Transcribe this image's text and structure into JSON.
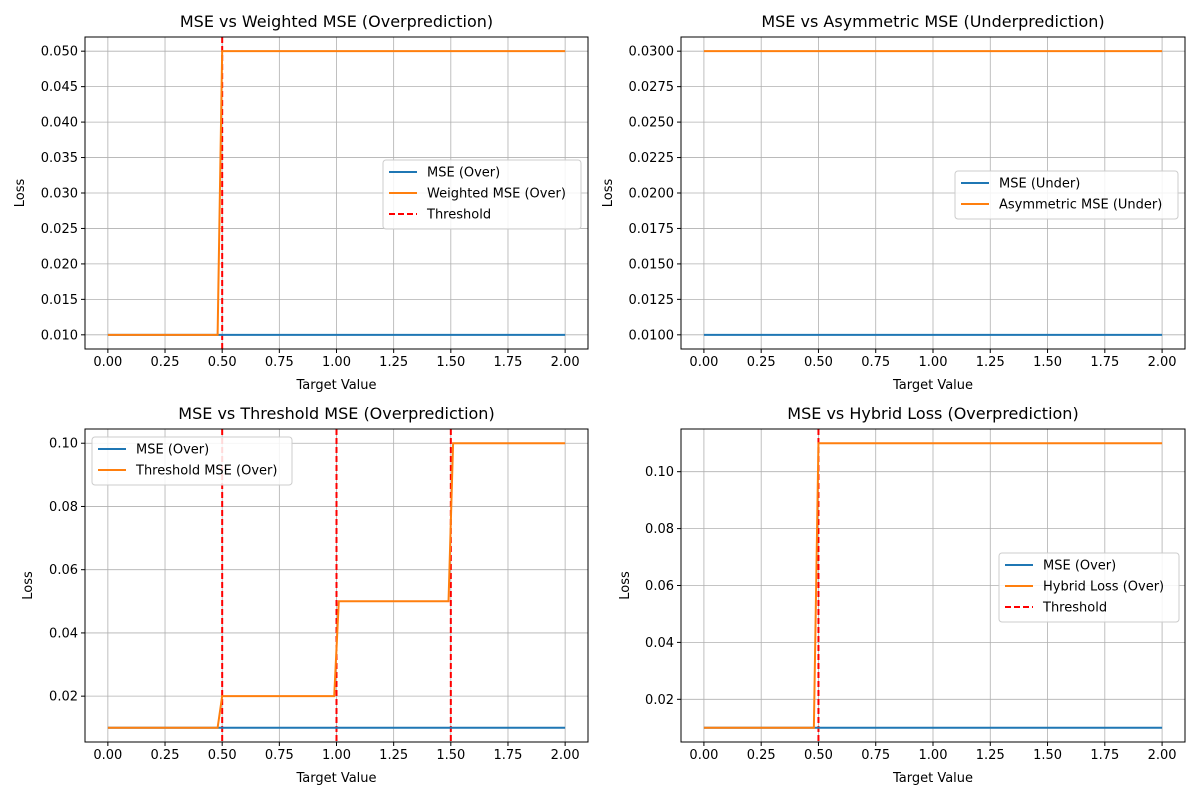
{
  "colors": {
    "mse": "#1f77b4",
    "variant": "#ff7f0e",
    "threshold": "#ff0000",
    "grid": "#b0b0b0",
    "axis": "#000000",
    "legend_border": "#cccccc"
  },
  "chart_data": [
    {
      "type": "line",
      "title": "MSE vs Weighted MSE (Overprediction)",
      "xlabel": "Target Value",
      "ylabel": "Loss",
      "xlim": [
        -0.1,
        2.1
      ],
      "ylim": [
        0.008,
        0.052
      ],
      "xticks": [
        0,
        0.25,
        0.5,
        0.75,
        1.0,
        1.25,
        1.5,
        1.75,
        2.0
      ],
      "xtick_labels": [
        "0.00",
        "0.25",
        "0.50",
        "0.75",
        "1.00",
        "1.25",
        "1.50",
        "1.75",
        "2.00"
      ],
      "yticks": [
        0.01,
        0.015,
        0.02,
        0.025,
        0.03,
        0.035,
        0.04,
        0.045,
        0.05
      ],
      "ytick_labels": [
        "0.010",
        "0.015",
        "0.020",
        "0.025",
        "0.030",
        "0.035",
        "0.040",
        "0.045",
        "0.050"
      ],
      "grid": true,
      "legend_position": "center-right",
      "series": [
        {
          "name": "MSE (Over)",
          "color_key": "mse",
          "style": "solid",
          "x": [
            0,
            2.0
          ],
          "y": [
            0.01,
            0.01
          ]
        },
        {
          "name": "Weighted MSE (Over)",
          "color_key": "variant",
          "style": "solid",
          "x": [
            0,
            0.48,
            0.5,
            2.0
          ],
          "y": [
            0.01,
            0.01,
            0.05,
            0.05
          ]
        }
      ],
      "vlines": [
        {
          "name": "Threshold",
          "x": 0.5,
          "legend": true
        }
      ]
    },
    {
      "type": "line",
      "title": "MSE vs Asymmetric MSE (Underprediction)",
      "xlabel": "Target Value",
      "ylabel": "Loss",
      "xlim": [
        -0.1,
        2.1
      ],
      "ylim": [
        0.009,
        0.031
      ],
      "xticks": [
        0,
        0.25,
        0.5,
        0.75,
        1.0,
        1.25,
        1.5,
        1.75,
        2.0
      ],
      "xtick_labels": [
        "0.00",
        "0.25",
        "0.50",
        "0.75",
        "1.00",
        "1.25",
        "1.50",
        "1.75",
        "2.00"
      ],
      "yticks": [
        0.01,
        0.0125,
        0.015,
        0.0175,
        0.02,
        0.0225,
        0.025,
        0.0275,
        0.03
      ],
      "ytick_labels": [
        "0.0100",
        "0.0125",
        "0.0150",
        "0.0175",
        "0.0200",
        "0.0225",
        "0.0250",
        "0.0275",
        "0.0300"
      ],
      "grid": true,
      "legend_position": "center-right",
      "series": [
        {
          "name": "MSE (Under)",
          "color_key": "mse",
          "style": "solid",
          "x": [
            0,
            2.0
          ],
          "y": [
            0.01,
            0.01
          ]
        },
        {
          "name": "Asymmetric MSE (Under)",
          "color_key": "variant",
          "style": "solid",
          "x": [
            0,
            2.0
          ],
          "y": [
            0.03,
            0.03
          ]
        }
      ],
      "vlines": []
    },
    {
      "type": "line",
      "title": "MSE vs Threshold MSE (Overprediction)",
      "xlabel": "Target Value",
      "ylabel": "Loss",
      "xlim": [
        -0.1,
        2.1
      ],
      "ylim": [
        0.0055,
        0.1045
      ],
      "xticks": [
        0,
        0.25,
        0.5,
        0.75,
        1.0,
        1.25,
        1.5,
        1.75,
        2.0
      ],
      "xtick_labels": [
        "0.00",
        "0.25",
        "0.50",
        "0.75",
        "1.00",
        "1.25",
        "1.50",
        "1.75",
        "2.00"
      ],
      "yticks": [
        0.02,
        0.04,
        0.06,
        0.08,
        0.1
      ],
      "ytick_labels": [
        "0.02",
        "0.04",
        "0.06",
        "0.08",
        "0.10"
      ],
      "grid": true,
      "legend_position": "top-left",
      "series": [
        {
          "name": "MSE (Over)",
          "color_key": "mse",
          "style": "solid",
          "x": [
            0,
            2.0
          ],
          "y": [
            0.01,
            0.01
          ]
        },
        {
          "name": "Threshold MSE (Over)",
          "color_key": "variant",
          "style": "solid",
          "x": [
            0,
            0.48,
            0.5,
            0.99,
            1.01,
            1.49,
            1.51,
            2.0
          ],
          "y": [
            0.01,
            0.01,
            0.02,
            0.02,
            0.05,
            0.05,
            0.1,
            0.1
          ]
        }
      ],
      "vlines": [
        {
          "name": "",
          "x": 0.5,
          "legend": false
        },
        {
          "name": "",
          "x": 1.0,
          "legend": false
        },
        {
          "name": "",
          "x": 1.5,
          "legend": false
        }
      ]
    },
    {
      "type": "line",
      "title": "MSE vs Hybrid Loss (Overprediction)",
      "xlabel": "Target Value",
      "ylabel": "Loss",
      "xlim": [
        -0.1,
        2.1
      ],
      "ylim": [
        0.005,
        0.115
      ],
      "xticks": [
        0,
        0.25,
        0.5,
        0.75,
        1.0,
        1.25,
        1.5,
        1.75,
        2.0
      ],
      "xtick_labels": [
        "0.00",
        "0.25",
        "0.50",
        "0.75",
        "1.00",
        "1.25",
        "1.50",
        "1.75",
        "2.00"
      ],
      "yticks": [
        0.02,
        0.04,
        0.06,
        0.08,
        0.1
      ],
      "ytick_labels": [
        "0.02",
        "0.04",
        "0.06",
        "0.08",
        "0.10"
      ],
      "grid": true,
      "legend_position": "center-right",
      "series": [
        {
          "name": "MSE (Over)",
          "color_key": "mse",
          "style": "solid",
          "x": [
            0,
            2.0
          ],
          "y": [
            0.01,
            0.01
          ]
        },
        {
          "name": "Hybrid Loss (Over)",
          "color_key": "variant",
          "style": "solid",
          "x": [
            0,
            0.48,
            0.5,
            2.0
          ],
          "y": [
            0.01,
            0.01,
            0.11,
            0.11
          ]
        }
      ],
      "vlines": [
        {
          "name": "Threshold",
          "x": 0.5,
          "legend": true
        }
      ]
    }
  ]
}
